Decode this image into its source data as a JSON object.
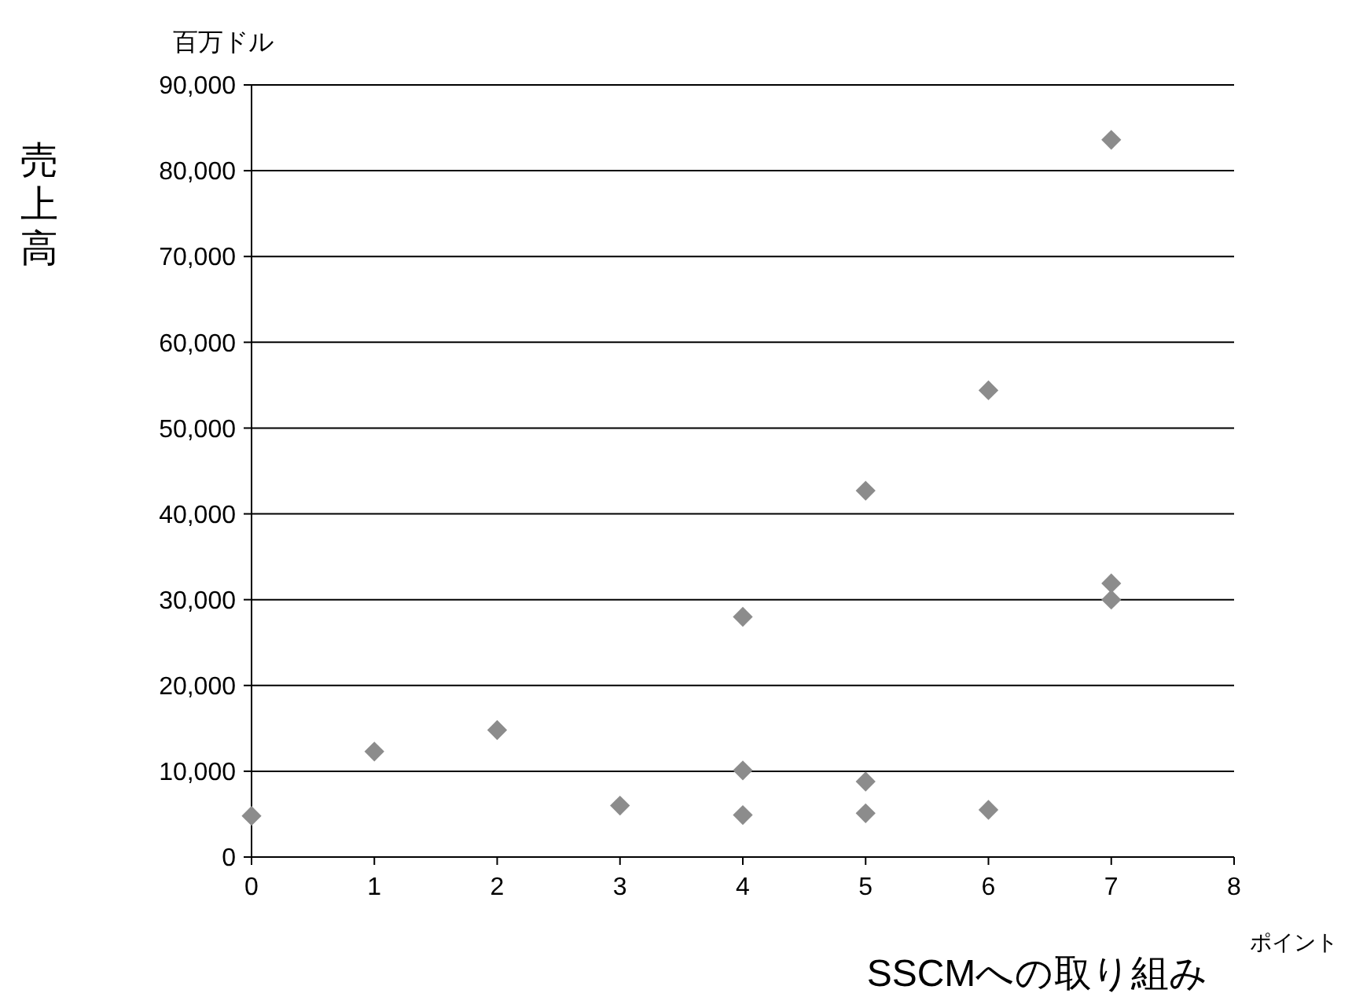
{
  "chart_data": {
    "type": "scatter",
    "xlabel": "SSCMへの取り組み",
    "ylabel": "売上高",
    "annotations": [
      "百万ドル",
      "ポイント"
    ],
    "x": [
      0,
      1,
      2,
      3,
      4,
      4,
      4,
      5,
      5,
      5,
      6,
      6,
      7,
      7,
      7
    ],
    "values": [
      4800,
      12300,
      14800,
      6000,
      28000,
      10100,
      4900,
      42700,
      8800,
      5100,
      54400,
      5500,
      83600,
      31900,
      30000
    ],
    "color": "#8c8c8c",
    "marker": "diamond",
    "xlim": [
      0,
      8
    ],
    "xticks": [
      0,
      1,
      2,
      3,
      4,
      5,
      6,
      7,
      8
    ],
    "ylim": [
      0,
      90000
    ],
    "yticks": [
      {
        "value": 0,
        "label": "0"
      },
      {
        "value": 10000,
        "label": "10,000"
      },
      {
        "value": 20000,
        "label": "20,000"
      },
      {
        "value": 30000,
        "label": "30,000"
      },
      {
        "value": 40000,
        "label": "40,000"
      },
      {
        "value": 50000,
        "label": "50,000"
      },
      {
        "value": 60000,
        "label": "60,000"
      },
      {
        "value": 70000,
        "label": "70,000"
      },
      {
        "value": 80000,
        "label": "80,000"
      },
      {
        "value": 90000,
        "label": "90,000"
      }
    ],
    "grid": "y"
  }
}
